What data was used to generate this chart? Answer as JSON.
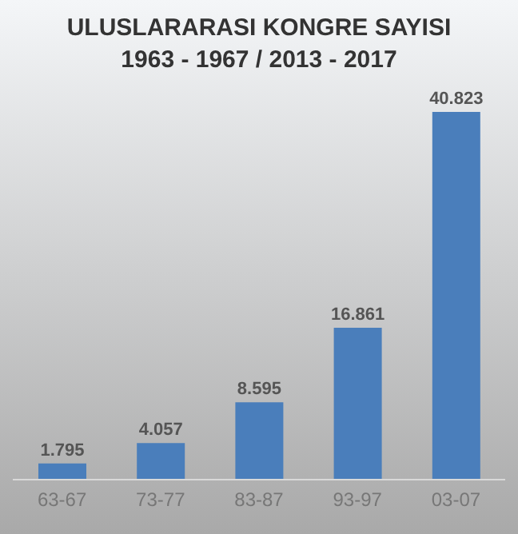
{
  "chart_data": {
    "type": "bar",
    "title": "ULUSLARARASI KONGRE SAYISI\n1963 - 1967 / 2013 - 2017",
    "categories": [
      "63-67",
      "73-77",
      "83-87",
      "93-97",
      "03-07"
    ],
    "values": [
      1795,
      4057,
      8595,
      16861,
      40823
    ],
    "value_labels": [
      "1.795",
      "4.057",
      "8.595",
      "16.861",
      "40.823"
    ],
    "color": "#4a7ebb"
  }
}
